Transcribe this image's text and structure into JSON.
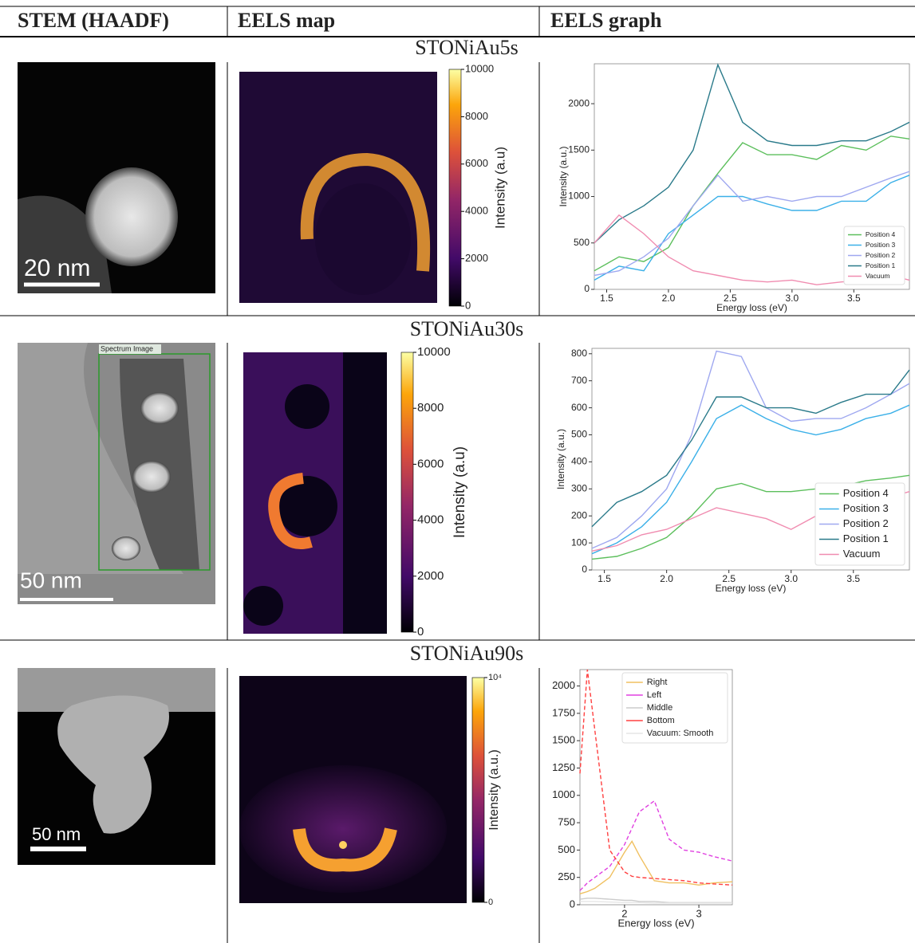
{
  "header": {
    "columns": [
      "STEM (HAADF)",
      "EELS map",
      "EELS graph"
    ]
  },
  "rows": [
    {
      "name": "STONiAu5s",
      "scale_bar": "20 nm",
      "colorbar": {
        "label": "Intensity (a.u)",
        "lim": [
          0,
          10000
        ],
        "ticks": [
          0,
          2000,
          4000,
          6000,
          8000,
          10000
        ]
      }
    },
    {
      "name": "STONiAu30s",
      "scale_bar": "50 nm",
      "stem_label": "Spectrum Image",
      "colorbar": {
        "label": "Intensity (a.u)",
        "lim": [
          0,
          10000
        ],
        "ticks": [
          0,
          2000,
          4000,
          6000,
          8000,
          10000
        ]
      }
    },
    {
      "name": "STONiAu90s",
      "scale_bar": "50 nm",
      "colorbar": {
        "label": "Intensity (a.u.)",
        "lim": [
          0,
          10000
        ],
        "ticks": [
          0,
          {
            "value": 10000,
            "label": "10⁴"
          }
        ]
      }
    }
  ],
  "chart_data": [
    {
      "type": "line",
      "xlabel": "Energy loss (eV)",
      "ylabel": "Intensity (a.u.)",
      "legend": "lower right",
      "xlim": [
        1.4,
        3.95
      ],
      "xticks": [
        1.5,
        {
          "value": 2,
          "label": "2.0"
        },
        2.5,
        {
          "value": 3,
          "label": "3.0"
        },
        3.5
      ],
      "ylim": [
        0,
        2430
      ],
      "yticks": [
        0,
        500,
        1000,
        1500,
        2000
      ],
      "x": [
        1.4,
        1.6,
        1.8,
        2.0,
        2.2,
        2.4,
        2.6,
        2.8,
        3.0,
        3.2,
        3.4,
        3.6,
        3.8,
        3.95
      ],
      "series": [
        {
          "name": "Position 4",
          "color": "#5cbf5c",
          "values": [
            200,
            350,
            300,
            450,
            900,
            1250,
            1580,
            1450,
            1450,
            1400,
            1550,
            1500,
            1650,
            1620
          ]
        },
        {
          "name": "Position 3",
          "color": "#3bb0e8",
          "values": [
            100,
            250,
            200,
            600,
            800,
            1000,
            1000,
            920,
            850,
            850,
            950,
            950,
            1150,
            1230
          ]
        },
        {
          "name": "Position 2",
          "color": "#9fa8f0",
          "values": [
            150,
            200,
            350,
            550,
            900,
            1230,
            950,
            1000,
            950,
            1000,
            1000,
            1100,
            1200,
            1270
          ]
        },
        {
          "name": "Position 1",
          "color": "#2a7a8a",
          "values": [
            500,
            750,
            900,
            1100,
            1500,
            2420,
            1800,
            1600,
            1550,
            1550,
            1600,
            1600,
            1700,
            1800
          ]
        },
        {
          "name": "Vacuum",
          "color": "#f08cb0",
          "values": [
            500,
            800,
            600,
            350,
            200,
            150,
            100,
            80,
            100,
            50,
            80,
            100,
            150,
            100
          ]
        }
      ]
    },
    {
      "type": "line",
      "xlabel": "Energy loss (eV)",
      "ylabel": "Intensity (a.u.)",
      "legend": "lower right",
      "xlim": [
        1.4,
        3.95
      ],
      "xticks": [
        1.5,
        {
          "value": 2,
          "label": "2.0"
        },
        2.5,
        {
          "value": 3,
          "label": "3.0"
        },
        3.5
      ],
      "ylim": [
        0,
        820
      ],
      "yticks": [
        0,
        100,
        200,
        300,
        400,
        500,
        600,
        700,
        800
      ],
      "x": [
        1.4,
        1.6,
        1.8,
        2.0,
        2.2,
        2.4,
        2.6,
        2.8,
        3.0,
        3.2,
        3.4,
        3.6,
        3.8,
        3.95
      ],
      "series": [
        {
          "name": "Position 4",
          "color": "#5cbf5c",
          "values": [
            40,
            50,
            80,
            120,
            200,
            300,
            320,
            290,
            290,
            300,
            310,
            330,
            340,
            350
          ]
        },
        {
          "name": "Position 3",
          "color": "#3bb0e8",
          "values": [
            60,
            100,
            160,
            250,
            400,
            560,
            610,
            560,
            520,
            500,
            520,
            560,
            580,
            610
          ]
        },
        {
          "name": "Position 2",
          "color": "#9fa8f0",
          "values": [
            80,
            120,
            200,
            300,
            500,
            810,
            790,
            600,
            550,
            560,
            560,
            600,
            650,
            690
          ]
        },
        {
          "name": "Position 1",
          "color": "#2a7a8a",
          "values": [
            160,
            250,
            290,
            350,
            480,
            640,
            640,
            600,
            600,
            580,
            620,
            650,
            650,
            740
          ]
        },
        {
          "name": "Vacuum",
          "color": "#f08cb0",
          "values": [
            70,
            90,
            130,
            150,
            190,
            230,
            210,
            190,
            150,
            200,
            220,
            250,
            270,
            290
          ]
        }
      ]
    },
    {
      "type": "line",
      "xlabel": "Energy loss (eV)",
      "legend": "upper right",
      "xlim": [
        1.4,
        3.45
      ],
      "xticks": [
        2,
        3
      ],
      "ylim": [
        0,
        2150
      ],
      "yticks": [
        0,
        250,
        500,
        750,
        1000,
        1250,
        1500,
        1750,
        2000
      ],
      "x": [
        1.4,
        1.5,
        1.6,
        1.8,
        2.0,
        2.1,
        2.2,
        2.4,
        2.6,
        2.8,
        3.0,
        3.2,
        3.45
      ],
      "series": [
        {
          "name": "Right",
          "color": "#f0c060",
          "values": [
            100,
            120,
            150,
            250,
            480,
            580,
            450,
            220,
            200,
            200,
            180,
            200,
            210
          ]
        },
        {
          "name": "Left",
          "color": "#e040e0",
          "linestyle": "dashed",
          "values": [
            130,
            200,
            250,
            350,
            550,
            700,
            850,
            950,
            600,
            500,
            480,
            440,
            400
          ]
        },
        {
          "name": "Middle",
          "color": "#cccccc",
          "values": [
            50,
            60,
            60,
            50,
            40,
            40,
            30,
            30,
            20,
            20,
            20,
            20,
            20
          ]
        },
        {
          "name": "Bottom",
          "color": "#ff4040",
          "linestyle": "dashed",
          "values": [
            1200,
            2150,
            1600,
            500,
            300,
            260,
            250,
            240,
            230,
            220,
            200,
            190,
            180
          ]
        },
        {
          "name": "Vacuum: Smooth",
          "color": "#e6e6e6",
          "values": [
            30,
            30,
            30,
            25,
            20,
            20,
            20,
            15,
            15,
            15,
            15,
            15,
            15
          ]
        }
      ]
    }
  ]
}
